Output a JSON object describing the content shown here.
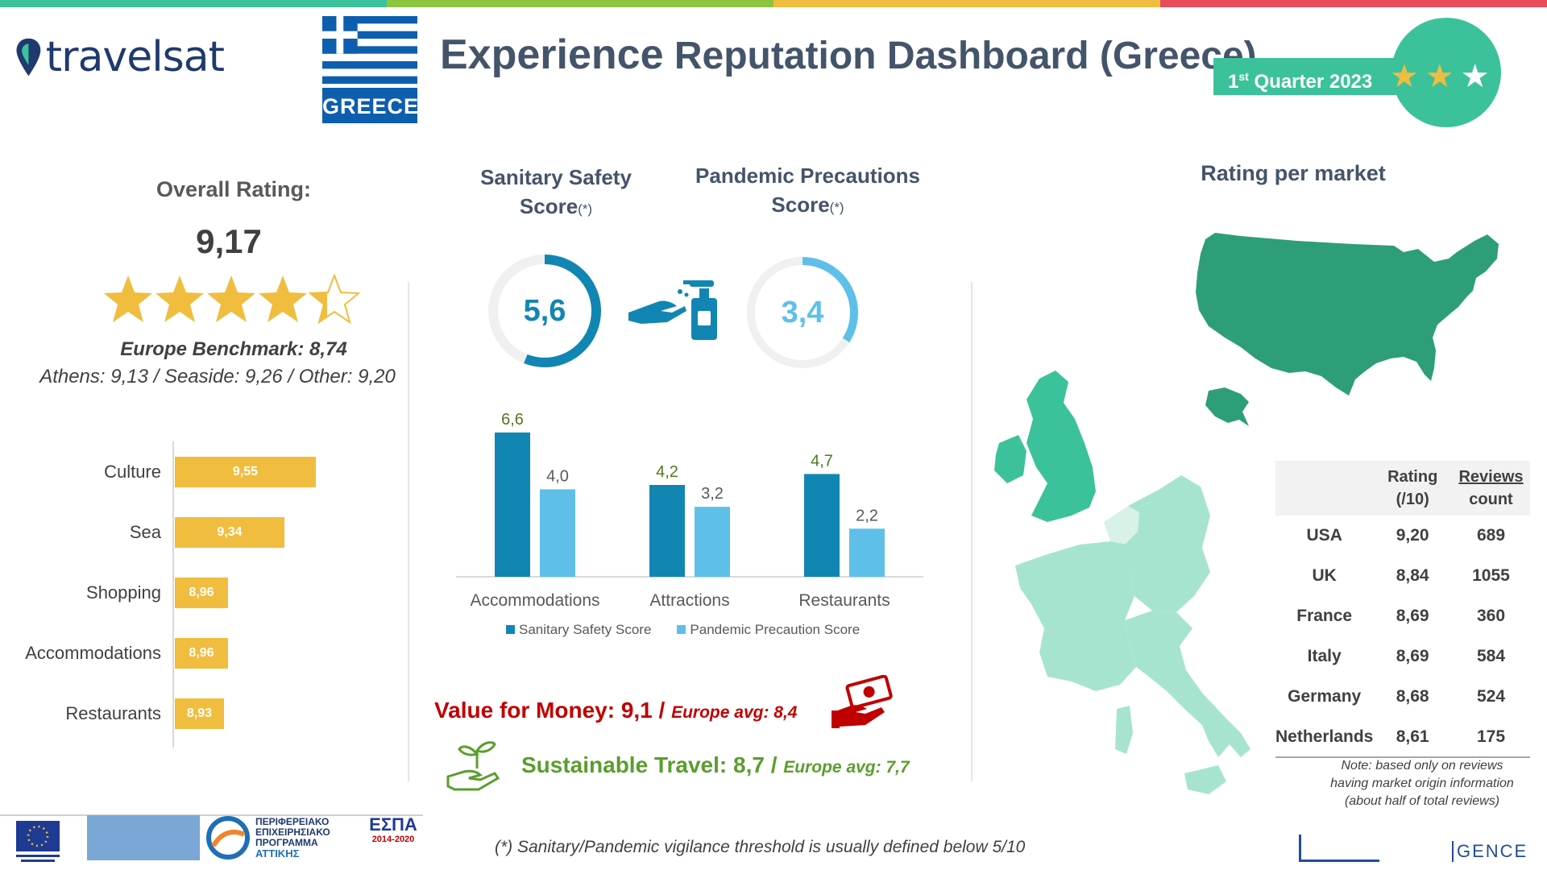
{
  "colors": {
    "stripe": [
      "#3cc29a",
      "#8cc63f",
      "#f0bd3f",
      "#e84c5a"
    ],
    "accent_green": "#3cc29a",
    "sanitary": "#1286b3",
    "pandemic": "#5ec0e8",
    "gold": "#f0bd3f",
    "value_red": "#c00000",
    "sustain_green": "#5a9e2d"
  },
  "header": {
    "logo_text": "travelsat",
    "flag_label": "GREECE",
    "title_big": "Experience",
    "title_rest": "Reputation Dashboard (Greece)",
    "quarter_ord": "1",
    "quarter_sup": "st",
    "quarter_text": "Quarter 2023"
  },
  "overall": {
    "title": "Overall Rating:",
    "value": "9,17",
    "stars": 4.5,
    "benchmark": "Europe Benchmark: 8,74",
    "breakdown": "Athens: 9,13 / Seaside: 9,26 / Other: 9,20"
  },
  "category_ratings": [
    {
      "label": "Culture",
      "value": 9.55,
      "display": "9,55"
    },
    {
      "label": "Sea",
      "value": 9.34,
      "display": "9,34"
    },
    {
      "label": "Shopping",
      "value": 8.96,
      "display": "8,96"
    },
    {
      "label": "Accommodations",
      "value": 8.96,
      "display": "8,96"
    },
    {
      "label": "Restaurants",
      "value": 8.93,
      "display": "8,93"
    }
  ],
  "sanitary": {
    "title_line1": "Sanitary Safety",
    "title_line2": "Score",
    "asterisk": "(*)",
    "value": 5.6,
    "display": "5,6"
  },
  "pandemic": {
    "title_line1": "Pandemic Precautions",
    "title_line2": "Score",
    "asterisk": "(*)",
    "value": 3.4,
    "display": "3,4"
  },
  "chart_data": {
    "type": "bar",
    "categories": [
      "Accommodations",
      "Attractions",
      "Restaurants"
    ],
    "series": [
      {
        "name": "Sanitary Safety Score",
        "values": [
          6.6,
          4.2,
          4.7
        ],
        "labels": [
          "6,6",
          "4,2",
          "4,7"
        ],
        "label_color": "#4e7a1d"
      },
      {
        "name": "Pandemic Precaution Score",
        "values": [
          4.0,
          3.2,
          2.2
        ],
        "labels": [
          "4,0",
          "3,2",
          "2,2"
        ],
        "label_color": "#595959"
      }
    ],
    "ylim": [
      0,
      7
    ]
  },
  "value_for_money": {
    "main": "Value for Money: 9,1 /",
    "avg": "Europe avg: 8,4"
  },
  "sustainable": {
    "main": "Sustainable Travel: 8,7 /",
    "avg": "Europe avg: 7,7"
  },
  "footnote": "(*) Sanitary/Pandemic vigilance threshold is usually defined below 5/10",
  "market": {
    "title": "Rating per market",
    "col_rating": "Rating (/10)",
    "col_rating_l1": "Rating",
    "col_rating_l2": "(/10)",
    "col_reviews_l1": "Reviews",
    "col_reviews_l2": "count",
    "rows": [
      {
        "market": "USA",
        "rating": "9,20",
        "reviews": "689"
      },
      {
        "market": "UK",
        "rating": "8,84",
        "reviews": "1055"
      },
      {
        "market": "France",
        "rating": "8,69",
        "reviews": "360"
      },
      {
        "market": "Italy",
        "rating": "8,69",
        "reviews": "584"
      },
      {
        "market": "Germany",
        "rating": "8,68",
        "reviews": "524"
      },
      {
        "market": "Netherlands",
        "rating": "8,61",
        "reviews": "175"
      }
    ],
    "note_l1": "Note: based only on reviews",
    "note_l2": "having market origin information",
    "note_l3": "(about half of total reviews)"
  },
  "footer": {
    "attica_l1": "ΠΕΡΙΦΕΡΕΙΑΚΟ",
    "attica_l2": "ΕΠΙΧΕΙΡΗΣΙΑΚΟ",
    "attica_l3": "ΠΡΟΓΡΑΜΜΑ",
    "attica_l4": "ΑΤΤΙΚΗΣ",
    "espa": "ΕΣΠΑ",
    "espa_years": "2014-2020",
    "gence": "GENCE"
  }
}
